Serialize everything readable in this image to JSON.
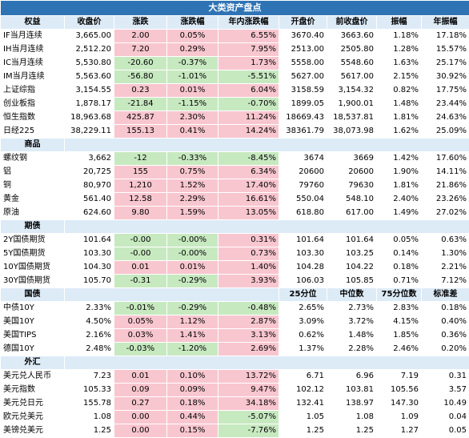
{
  "title": "大类资产盘点",
  "header": [
    "权益",
    "收盘价",
    "涨跌",
    "涨跌幅",
    "年内涨跌幅",
    "开盘价",
    "前收盘价",
    "振幅",
    "年振幅"
  ],
  "equity": [
    {
      "name": "IF当月连续",
      "close": "3,665.00",
      "chg": "2.00",
      "pct": "0.05%",
      "ytd": "6.55%",
      "open": "3670.40",
      "prev": "3663.60",
      "amp": "1.18%",
      "yamp": "17.18%",
      "c": "red",
      "y": "red"
    },
    {
      "name": "IH当月连续",
      "close": "2,512.20",
      "chg": "7.20",
      "pct": "0.29%",
      "ytd": "7.95%",
      "open": "2513.00",
      "prev": "2505.80",
      "amp": "1.28%",
      "yamp": "15.57%",
      "c": "red",
      "y": "red"
    },
    {
      "name": "IC当月连续",
      "close": "5,530.80",
      "chg": "-20.60",
      "pct": "-0.37%",
      "ytd": "1.73%",
      "open": "5558.00",
      "prev": "5548.60",
      "amp": "1.63%",
      "yamp": "25.17%",
      "c": "green",
      "y": "red"
    },
    {
      "name": "IM当月连续",
      "close": "5,563.60",
      "chg": "-56.80",
      "pct": "-1.01%",
      "ytd": "-5.51%",
      "open": "5627.00",
      "prev": "5617.00",
      "amp": "2.15%",
      "yamp": "30.92%",
      "c": "green",
      "y": "green"
    },
    {
      "name": "上证综指",
      "close": "3,154.55",
      "chg": "0.23",
      "pct": "0.01%",
      "ytd": "6.04%",
      "open": "3158.59",
      "prev": "3,154.32",
      "amp": "0.82%",
      "yamp": "17.75%",
      "c": "red",
      "y": "red"
    },
    {
      "name": "创业板指",
      "close": "1,878.17",
      "chg": "-21.84",
      "pct": "-1.15%",
      "ytd": "-0.70%",
      "open": "1899.05",
      "prev": "1,900.01",
      "amp": "1.48%",
      "yamp": "23.44%",
      "c": "green",
      "y": "green"
    },
    {
      "name": "恒生指数",
      "close": "18,963.68",
      "chg": "425.87",
      "pct": "2.30%",
      "ytd": "11.24%",
      "open": "18669.43",
      "prev": "18,537.81",
      "amp": "1.81%",
      "yamp": "24.63%",
      "c": "red",
      "y": "red"
    },
    {
      "name": "日经225",
      "close": "38,229.11",
      "chg": "155.13",
      "pct": "0.41%",
      "ytd": "14.24%",
      "open": "38361.79",
      "prev": "38,073.98",
      "amp": "1.62%",
      "yamp": "25.09%",
      "c": "red",
      "y": "red"
    }
  ],
  "sections": {
    "commodity": "商品",
    "futures": "期债",
    "bond": "国债",
    "fx": "外汇"
  },
  "commodity": [
    {
      "name": "螺纹钢",
      "close": "3,662",
      "chg": "-12",
      "pct": "-0.33%",
      "ytd": "-8.45%",
      "open": "3674",
      "prev": "3669",
      "amp": "1.42%",
      "yamp": "17.60%",
      "c": "green",
      "y": "green"
    },
    {
      "name": "铝",
      "close": "20,725",
      "chg": "155",
      "pct": "0.75%",
      "ytd": "6.34%",
      "open": "20600",
      "prev": "20600",
      "amp": "1.90%",
      "yamp": "14.11%",
      "c": "red",
      "y": "red"
    },
    {
      "name": "铜",
      "close": "80,970",
      "chg": "1,210",
      "pct": "1.52%",
      "ytd": "17.40%",
      "open": "79760",
      "prev": "79630",
      "amp": "1.81%",
      "yamp": "21.86%",
      "c": "red",
      "y": "red"
    },
    {
      "name": "黄金",
      "close": "561.40",
      "chg": "12.58",
      "pct": "2.29%",
      "ytd": "16.61%",
      "open": "550.04",
      "prev": "548.10",
      "amp": "2.40%",
      "yamp": "23.26%",
      "c": "red",
      "y": "red"
    },
    {
      "name": "原油",
      "close": "624.60",
      "chg": "9.80",
      "pct": "1.59%",
      "ytd": "13.05%",
      "open": "618.80",
      "prev": "617.00",
      "amp": "1.49%",
      "yamp": "27.02%",
      "c": "red",
      "y": "red"
    }
  ],
  "futures": [
    {
      "name": "2Y国债期货",
      "close": "101.64",
      "chg": "-0.00",
      "pct": "-0.00%",
      "ytd": "0.31%",
      "open": "101.64",
      "prev": "101.64",
      "amp": "0.05%",
      "yamp": "0.63%",
      "c": "green",
      "y": "red"
    },
    {
      "name": "5Y国债期货",
      "close": "103.30",
      "chg": "-0.00",
      "pct": "-0.00%",
      "ytd": "0.73%",
      "open": "103.30",
      "prev": "103.25",
      "amp": "0.14%",
      "yamp": "1.30%",
      "c": "green",
      "y": "red"
    },
    {
      "name": "10Y国债期货",
      "close": "104.30",
      "chg": "0.01",
      "pct": "0.01%",
      "ytd": "1.40%",
      "open": "104.28",
      "prev": "104.22",
      "amp": "0.18%",
      "yamp": "2.21%",
      "c": "red",
      "y": "red"
    },
    {
      "name": "30Y国债期货",
      "close": "105.70",
      "chg": "-0.31",
      "pct": "-0.29%",
      "ytd": "3.93%",
      "open": "106.03",
      "prev": "105.85",
      "amp": "0.71%",
      "yamp": "7.12%",
      "c": "green",
      "y": "red"
    }
  ],
  "bond_header": [
    "25分位",
    "中位数",
    "75分位数",
    "标准差"
  ],
  "bond": [
    {
      "name": "中债10Y",
      "close": "2.33%",
      "chg": "-0.01%",
      "pct": "-0.29%",
      "ytd": "-0.48%",
      "open": "2.65%",
      "prev": "2.73%",
      "amp": "2.83%",
      "yamp": "0.18%",
      "c": "green",
      "y": "green"
    },
    {
      "name": "美国10Y",
      "close": "4.50%",
      "chg": "0.05%",
      "pct": "1.12%",
      "ytd": "2.87%",
      "open": "3.09%",
      "prev": "3.72%",
      "amp": "4.15%",
      "yamp": "0.40%",
      "c": "red",
      "y": "red"
    },
    {
      "name": "美国TIPS",
      "close": "2.16%",
      "chg": "0.03%",
      "pct": "1.41%",
      "ytd": "3.13%",
      "open": "0.62%",
      "prev": "1.48%",
      "amp": "1.85%",
      "yamp": "0.36%",
      "c": "red",
      "y": "red"
    },
    {
      "name": "德国10Y",
      "close": "2.48%",
      "chg": "-0.03%",
      "pct": "-1.20%",
      "ytd": "2.69%",
      "open": "1.37%",
      "prev": "2.28%",
      "amp": "2.46%",
      "yamp": "0.20%",
      "c": "green",
      "y": "red"
    }
  ],
  "fx": [
    {
      "name": "美元兑人民币",
      "close": "7.23",
      "chg": "0.01",
      "pct": "0.10%",
      "ytd": "13.72%",
      "open": "6.71",
      "prev": "6.96",
      "amp": "7.19",
      "yamp": "0.31",
      "c": "red",
      "y": "red"
    },
    {
      "name": "美元指数",
      "close": "105.33",
      "chg": "0.09",
      "pct": "0.09%",
      "ytd": "9.47%",
      "open": "102.12",
      "prev": "103.81",
      "amp": "105.56",
      "yamp": "3.57",
      "c": "red",
      "y": "red"
    },
    {
      "name": "美元兑日元",
      "close": "155.78",
      "chg": "0.27",
      "pct": "0.18%",
      "ytd": "34.18%",
      "open": "132.41",
      "prev": "138.97",
      "amp": "147.30",
      "yamp": "10.49",
      "c": "red",
      "y": "red"
    },
    {
      "name": "欧元兑美元",
      "close": "1.08",
      "chg": "0.00",
      "pct": "0.44%",
      "ytd": "-5.07%",
      "open": "1.05",
      "prev": "1.08",
      "amp": "1.09",
      "yamp": "0.04",
      "c": "red",
      "y": "green"
    },
    {
      "name": "美镑兑美元",
      "close": "1.25",
      "chg": "0.00",
      "pct": "0.15%",
      "ytd": "-7.76%",
      "open": "1.25",
      "prev": "1.25",
      "amp": "1.27",
      "yamp": "0.05",
      "c": "red",
      "y": "green"
    }
  ]
}
